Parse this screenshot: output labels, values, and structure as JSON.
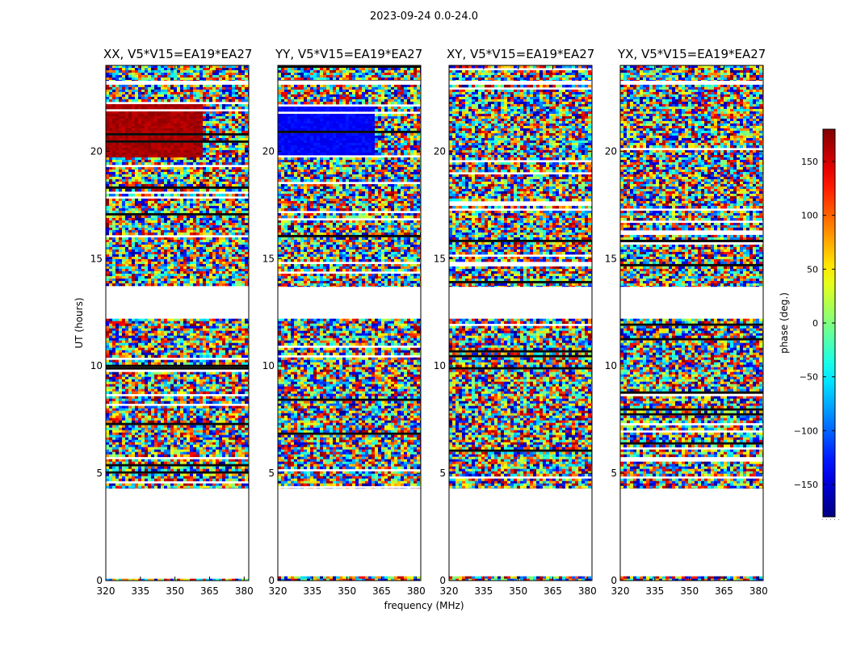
{
  "figure": {
    "suptitle": "2023-09-24 0.0-24.0",
    "xlabel": "frequency (MHz)",
    "ylabel": "UT (hours)",
    "colorbar_label": "phase (deg.)",
    "colorbar_dots": ". . . . ."
  },
  "chart_data": {
    "type": "heatmap",
    "quantity": "visibility phase",
    "x_range": [
      320,
      382
    ],
    "y_range": [
      0,
      24
    ],
    "x_ticks": [
      320,
      335,
      350,
      365,
      380
    ],
    "y_ticks": [
      0,
      5,
      10,
      15,
      20
    ],
    "colorbar": {
      "colormap": "jet",
      "range": [
        -180,
        180
      ],
      "ticks": [
        150,
        100,
        50,
        0,
        -50,
        -100,
        -150
      ],
      "tick_labels": [
        "150",
        "100",
        "50",
        "0",
        "−50",
        "−100",
        "−150"
      ]
    },
    "data_ranges_ut": [
      [
        0.0,
        0.2
      ],
      [
        4.3,
        12.2
      ],
      [
        13.7,
        23.1
      ],
      [
        23.3,
        24.0
      ]
    ],
    "panels": [
      {
        "title": "XX, V5*V15=EA19*EA27",
        "pol": "XX",
        "coherent_phase_deg": 165,
        "coherent_ut": [
          19.8,
          22.3
        ],
        "coherent_freq_mhz": [
          320,
          361
        ]
      },
      {
        "title": "YY, V5*V15=EA19*EA27",
        "pol": "YY",
        "coherent_phase_deg": -135,
        "coherent_ut": [
          19.8,
          22.3
        ],
        "coherent_freq_mhz": [
          320,
          361
        ]
      },
      {
        "title": "XY, V5*V15=EA19*EA27",
        "pol": "XY",
        "coherent_phase_deg": null,
        "coherent_ut": null,
        "coherent_freq_mhz": null
      },
      {
        "title": "YX, V5*V15=EA19*EA27",
        "pol": "YX",
        "coherent_phase_deg": null,
        "coherent_ut": null,
        "coherent_freq_mhz": null
      }
    ]
  }
}
